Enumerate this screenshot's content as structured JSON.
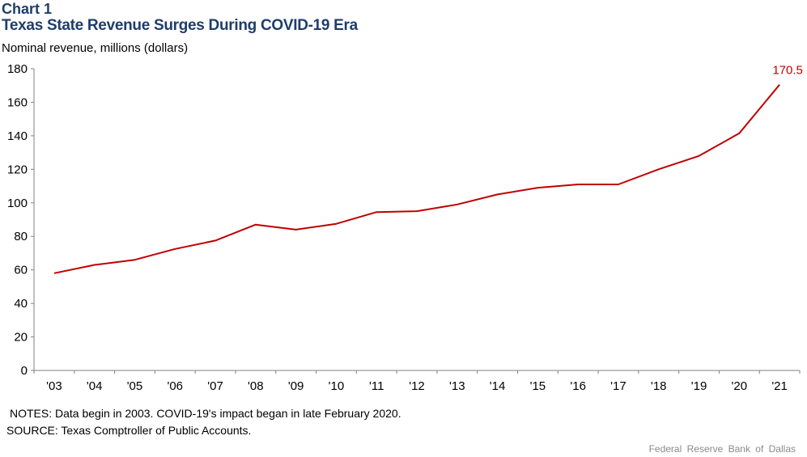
{
  "header": {
    "chart_number": "Chart 1",
    "title": "Texas State Revenue Surges During COVID-19 Era",
    "unit_label": "Nominal revenue, millions (dollars)"
  },
  "footer": {
    "notes": "NOTES: Data begin in 2003. COVID-19's impact began in late February 2020.",
    "source": "SOURCE: Texas Comptroller of Public Accounts.",
    "credit": "Federal Reserve Bank of Dallas"
  },
  "chart_data": {
    "type": "line",
    "title": "Texas State Revenue Surges During COVID-19 Era",
    "xlabel": "",
    "ylabel": "Nominal revenue, millions (dollars)",
    "categories": [
      "'03",
      "'04",
      "'05",
      "'06",
      "'07",
      "'08",
      "'09",
      "'10",
      "'11",
      "'12",
      "'13",
      "'14",
      "'15",
      "'16",
      "'17",
      "'18",
      "'19",
      "'20",
      "'21"
    ],
    "series": [
      {
        "values": [
          58,
          63,
          66,
          72.5,
          77.5,
          87,
          84,
          87.5,
          94.5,
          95,
          99,
          105,
          109,
          111,
          111,
          120,
          128,
          141.5,
          170.5
        ],
        "color": "#c00000"
      }
    ],
    "end_label": "170.5",
    "ylim": [
      0,
      180
    ],
    "yticks": [
      0,
      20,
      40,
      60,
      80,
      100,
      120,
      140,
      160,
      180
    ],
    "grid": false,
    "legend": "none"
  }
}
